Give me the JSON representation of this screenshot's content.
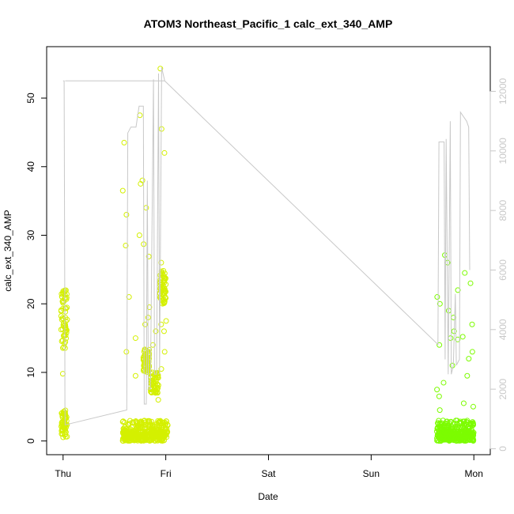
{
  "chart_data": {
    "type": "scatter",
    "title": "ATOM3 Northeast_Pacific_1 calc_ext_340_AMP",
    "xlabel": "Date",
    "ylabel": "calc_ext_340_AMP",
    "x_tick_labels": [
      "Thu",
      "Fri",
      "Sat",
      "Sun",
      "Mon"
    ],
    "x_tick_positions_days": [
      0,
      1,
      2,
      3,
      4
    ],
    "x_range_days": [
      -0.16,
      4.16
    ],
    "ylim": [
      -2,
      57.5
    ],
    "y_ticks": [
      0,
      10,
      20,
      30,
      40,
      50
    ],
    "y2_label": "",
    "y2lim": [
      -200,
      13500
    ],
    "y2_ticks": [
      0,
      2000,
      4000,
      6000,
      8000,
      10000,
      12000
    ],
    "colors": {
      "points_early": "#d4f000",
      "points_late": "#7cfc00",
      "altitude_line": "#c8c8c8",
      "axis": "#000000",
      "secondary_axis": "#c8c8c8"
    },
    "series": [
      {
        "kind": "points",
        "clusters": [
          {
            "x_range_days": [
              -0.02,
              0.04
            ],
            "y_bands": [
              [
                0.5,
                4.5
              ],
              [
                13.5,
                22
              ]
            ],
            "y_sparse": [
              9.8,
              2.0,
              3.5
            ],
            "count": 120
          },
          {
            "x_range_days": [
              0.58,
              1.02
            ],
            "y_bands": [
              [
                0,
                3
              ],
              [
                0,
                1.5
              ]
            ],
            "y_sparse": [
              54.3,
              47.5,
              45.5,
              43.5,
              42,
              38,
              37.5,
              36.5,
              34,
              33,
              30,
              28.5,
              21,
              19.5,
              17.5,
              16,
              15,
              14,
              13,
              12,
              10.5,
              9.5,
              6
            ],
            "count": 400
          },
          {
            "x_range_days": [
              0.78,
              0.84
            ],
            "y_bands": [
              [
                10,
                13.5
              ]
            ],
            "y_sparse": [
              28.7,
              26.9,
              18,
              17
            ],
            "count": 60
          },
          {
            "x_range_days": [
              0.85,
              0.93
            ],
            "y_bands": [
              [
                7,
                10
              ]
            ],
            "y_sparse": [],
            "count": 60
          },
          {
            "x_range_days": [
              0.94,
              1.0
            ],
            "y_bands": [
              [
                20,
                25
              ]
            ],
            "y_sparse": [
              26,
              17,
              16,
              13
            ],
            "count": 60
          },
          {
            "x_range_days": [
              3.64,
              4.0
            ],
            "y_bands": [
              [
                0,
                3
              ],
              [
                0,
                1.5
              ]
            ],
            "y_sparse": [
              27.1,
              26,
              24.5,
              23,
              22,
              21,
              20,
              19,
              18,
              17,
              16,
              15,
              14,
              13,
              12,
              11,
              9.5,
              8.5,
              7.5,
              6.5,
              5.5,
              5,
              4.5,
              15.2,
              14.8
            ],
            "count": 350
          }
        ]
      },
      {
        "kind": "line",
        "axis": "secondary",
        "points": [
          [
            0.0,
            12350
          ],
          [
            0.01,
            12350
          ],
          [
            0.016,
            5200
          ],
          [
            0.018,
            1500
          ],
          [
            0.02,
            800
          ],
          [
            0.62,
            1300
          ],
          [
            0.63,
            10600
          ],
          [
            0.66,
            10800
          ],
          [
            0.71,
            10800
          ],
          [
            0.74,
            11500
          ],
          [
            0.77,
            11500
          ],
          [
            0.782,
            11500
          ],
          [
            0.79,
            1500
          ],
          [
            0.81,
            1500
          ],
          [
            0.82,
            9000
          ],
          [
            0.83,
            2000
          ],
          [
            0.85,
            2000
          ],
          [
            0.88,
            12400
          ],
          [
            0.89,
            2500
          ],
          [
            0.91,
            2500
          ],
          [
            0.93,
            12600
          ],
          [
            0.94,
            2500
          ],
          [
            0.96,
            12800
          ],
          [
            0.99,
            12350
          ],
          [
            0.99,
            12350
          ],
          [
            0.02,
            12350
          ],
          [
            0.99,
            12350
          ],
          [
            3.65,
            3500
          ],
          [
            3.66,
            10300
          ],
          [
            3.71,
            10300
          ],
          [
            3.72,
            3000
          ],
          [
            3.73,
            10400
          ],
          [
            3.75,
            2500
          ],
          [
            3.77,
            11000
          ],
          [
            3.78,
            2500
          ],
          [
            3.8,
            2800
          ],
          [
            3.82,
            5200
          ],
          [
            3.83,
            2800
          ],
          [
            3.86,
            3000
          ],
          [
            3.87,
            11300
          ],
          [
            3.93,
            11000
          ],
          [
            3.95,
            10800
          ],
          [
            3.96,
            6000
          ]
        ]
      }
    ]
  }
}
